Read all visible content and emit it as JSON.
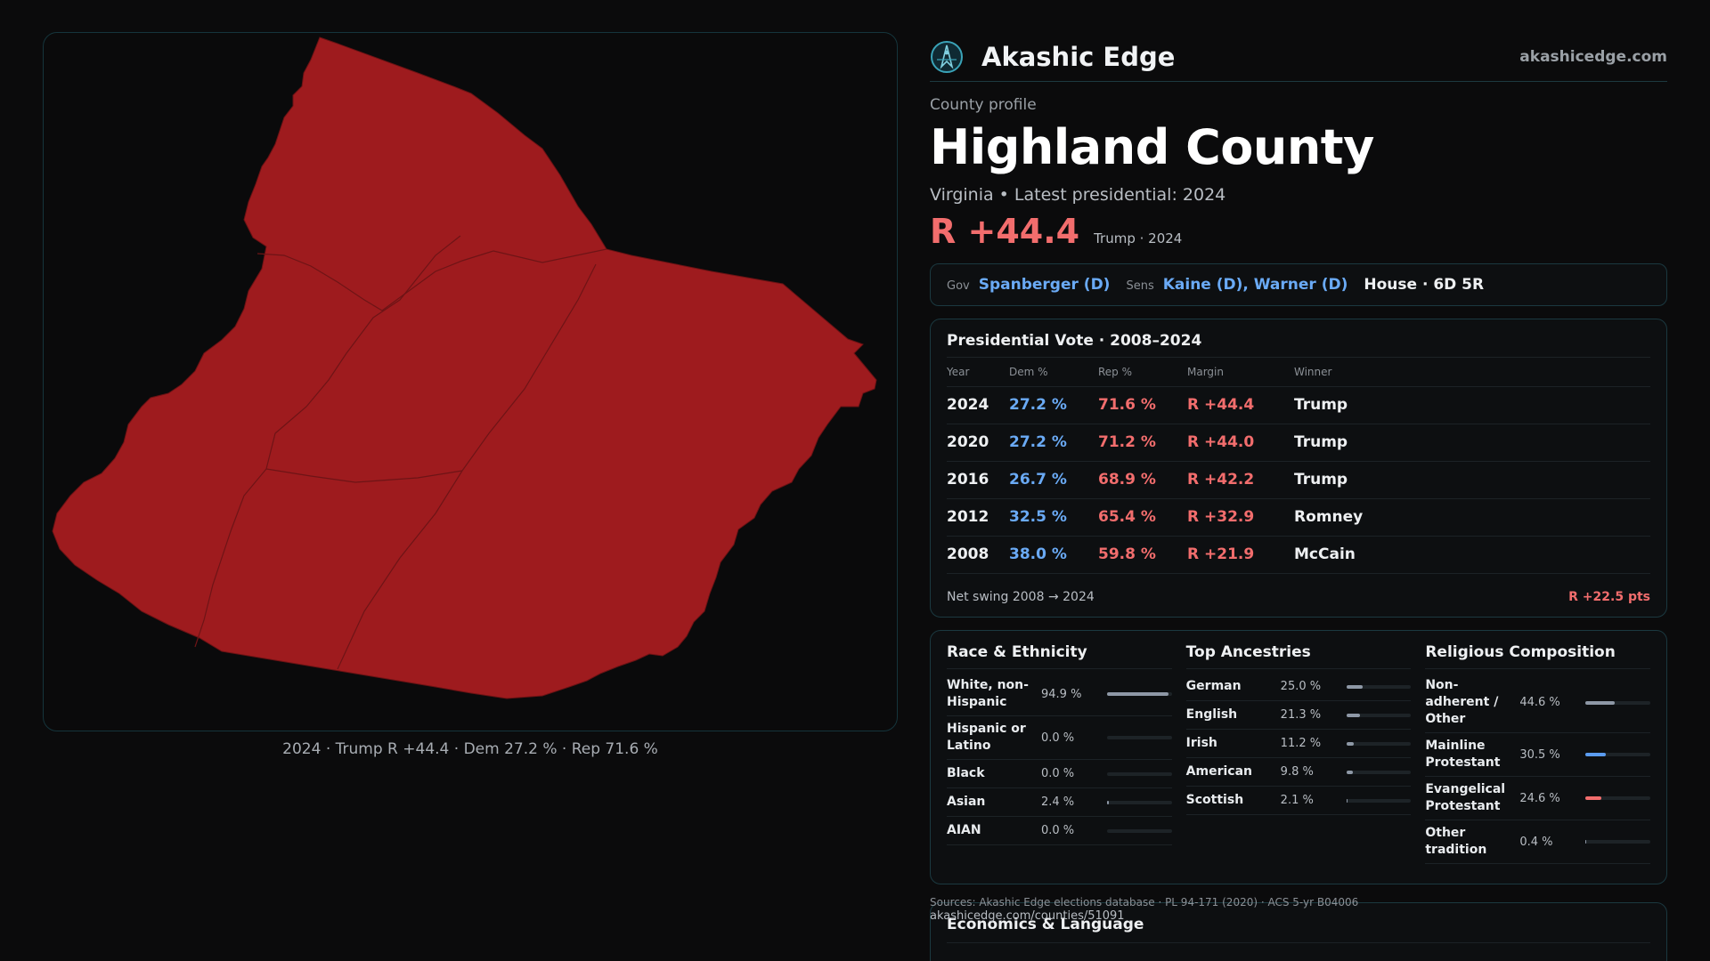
{
  "map": {
    "fill_color": "#9e1b1e",
    "caption": "2024 · Trump R +44.4 · Dem 27.2 % · Rep 71.6 %"
  },
  "brand": {
    "logo_icon": "akashic-compass-icon",
    "name": "Akashic Edge",
    "site": "akashicedge.com"
  },
  "profile": {
    "eyebrow": "County profile",
    "title": "Highland County",
    "subline": "Virginia • Latest presidential: 2024",
    "big_margin": "R +44.4",
    "margin_sub": "Trump · 2024"
  },
  "officials": {
    "gov_label": "Gov",
    "gov": "Spanberger (D)",
    "sens_label": "Sens",
    "sens": "Kaine (D), Warner (D)",
    "house": "House · 6D 5R"
  },
  "presidential": {
    "title": "Presidential Vote · 2008–2024",
    "headers": {
      "year": "Year",
      "dem": "Dem %",
      "rep": "Rep %",
      "margin": "Margin",
      "winner": "Winner"
    },
    "rows": [
      {
        "year": "2024",
        "dem": "27.2 %",
        "rep": "71.6 %",
        "margin": "R +44.4",
        "winner": "Trump"
      },
      {
        "year": "2020",
        "dem": "27.2 %",
        "rep": "71.2 %",
        "margin": "R +44.0",
        "winner": "Trump"
      },
      {
        "year": "2016",
        "dem": "26.7 %",
        "rep": "68.9 %",
        "margin": "R +42.2",
        "winner": "Trump"
      },
      {
        "year": "2012",
        "dem": "32.5 %",
        "rep": "65.4 %",
        "margin": "R +32.9",
        "winner": "Romney"
      },
      {
        "year": "2008",
        "dem": "38.0 %",
        "rep": "59.8 %",
        "margin": "R +21.9",
        "winner": "McCain"
      }
    ],
    "swing_label": "Net swing 2008 → 2024",
    "swing_value": "R +22.5 pts"
  },
  "race": {
    "title": "Race & Ethnicity",
    "rows": [
      {
        "label": "White, non-Hispanic",
        "pct": "94.9 %",
        "value": 94.9
      },
      {
        "label": "Hispanic or Latino",
        "pct": "0.0 %",
        "value": 0.0
      },
      {
        "label": "Black",
        "pct": "0.0 %",
        "value": 0.0
      },
      {
        "label": "Asian",
        "pct": "2.4 %",
        "value": 2.4
      },
      {
        "label": "AIAN",
        "pct": "0.0 %",
        "value": 0.0
      }
    ]
  },
  "ancestry": {
    "title": "Top Ancestries",
    "rows": [
      {
        "label": "German",
        "pct": "25.0 %",
        "value": 25.0
      },
      {
        "label": "English",
        "pct": "21.3 %",
        "value": 21.3
      },
      {
        "label": "Irish",
        "pct": "11.2 %",
        "value": 11.2
      },
      {
        "label": "American",
        "pct": "9.8 %",
        "value": 9.8
      },
      {
        "label": "Scottish",
        "pct": "2.1 %",
        "value": 2.1
      }
    ]
  },
  "religion": {
    "title": "Religious Composition",
    "rows": [
      {
        "label": "Non-adherent / Other",
        "pct": "44.6 %",
        "value": 44.6,
        "color": "#8e98a6"
      },
      {
        "label": "Mainline Protestant",
        "pct": "30.5 %",
        "value": 30.5,
        "color": "#5b9cf0"
      },
      {
        "label": "Evangelical Protestant",
        "pct": "24.6 %",
        "value": 24.6,
        "color": "#f26d6d"
      },
      {
        "label": "Other tradition",
        "pct": "0.4 %",
        "value": 0.4,
        "color": "#8e98a6"
      }
    ]
  },
  "sources": {
    "text": "Sources: Akashic Edge elections database · PL 94-171 (2020) · ACS 5-yr B04006",
    "url": "akashicedge.com/counties/51091"
  },
  "economics": {
    "title": "Economics & Language"
  }
}
